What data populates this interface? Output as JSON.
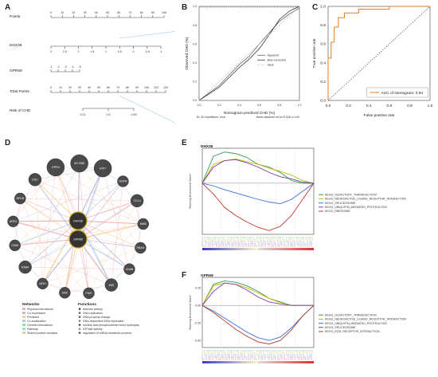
{
  "panels": {
    "A": {
      "letter": "A",
      "rows": [
        "Points",
        "DHX36",
        "GPR68",
        "Total Points",
        "Risk of CHD"
      ],
      "points_ticks": [
        "0",
        "10",
        "20",
        "30",
        "40",
        "50",
        "60",
        "70",
        "80",
        "90",
        "100"
      ],
      "dhx36_ticks": [
        "3",
        "2.5",
        "2",
        "1.5",
        "1",
        "0.5",
        "0",
        "-0.5",
        "-1"
      ],
      "gpr68_ticks": [
        "-1",
        "-2",
        "-3",
        "-4",
        "-5"
      ],
      "total_ticks": [
        "0",
        "10",
        "20",
        "30",
        "40",
        "50",
        "60",
        "70",
        "80",
        "90",
        "100",
        "110",
        "120"
      ],
      "risk_ticks": [
        "0.01",
        "0.5",
        "0.99"
      ]
    },
    "B": {
      "letter": "B",
      "ylabel": "Observed CHD (%)",
      "xlabel": "Nomogram-prediced CHD (%)",
      "legend": [
        "Apparent",
        "Bias-corrected",
        "Ideal"
      ],
      "footnote_left": "B= 40 repetitions, boot",
      "footnote_right": "Mean absolute error=0.028 n=120",
      "ticks": [
        "0.0",
        "0.2",
        "0.4",
        "0.6",
        "0.8",
        "1.0"
      ]
    },
    "C": {
      "letter": "C",
      "ylabel": "True positive rate",
      "xlabel": "False positive rate",
      "legend": "AUC of Nomogram: 0.94",
      "ticks": [
        "0.0",
        "0.2",
        "0.4",
        "0.6",
        "0.8",
        "1.0"
      ],
      "colors": {
        "roc": "#e67e22"
      }
    },
    "D": {
      "letter": "D",
      "center_nodes": [
        "DHX36",
        "GPR68"
      ],
      "outer_nodes": [
        "GPR4",
        "MYO9B",
        "IRF7",
        "OGFR",
        "CCL4",
        "NMB",
        "SNAI1",
        "XDAB",
        "MSI",
        "PIAS",
        "SMC",
        "MDH",
        "RAB4",
        "CD40",
        "APEX",
        "NFKB",
        "CDC"
      ],
      "networks_title": "Networks",
      "networks": [
        "Physical Interactions",
        "Co-expression",
        "Predicted",
        "Co-localization",
        "Genetic Interactions",
        "Pathway",
        "Shared protein domains"
      ],
      "network_colors": [
        "#e8a0a0",
        "#b7a6d6",
        "#f3c77a",
        "#9dc3e6",
        "#8fd18f",
        "#7fd8d8",
        "#d8c98c"
      ],
      "functions_title": "Functions",
      "functions": [
        "defense activity",
        "DNA replication",
        "DNA property change",
        "DNA-dependent DNA replication",
        "nuclear acid phosphodiester bond hydrolysis",
        "ATPase activity",
        "regulation of mRNA metabolic process"
      ]
    },
    "E": {
      "letter": "E",
      "gene": "DHX36",
      "ylabel": "Running Enrichment Score",
      "legend": [
        "KEGG_OLFACTORY_TRANSDUCTION",
        "KEGG_NEUROACTIVE_LIGAND_RECEPTOR_INTERACTION",
        "KEGG_SPLICEOSOME",
        "KEGG_UBIQUITIN_MEDIATED_PROTEOLYSIS",
        "KEGG_RIBOSOME"
      ],
      "colors": [
        "#2e9e4f",
        "#c9b400",
        "#3a6fd8",
        "#7a3fa3",
        "#c0392b"
      ]
    },
    "F": {
      "letter": "F",
      "gene": "GPR68",
      "ylabel": "Running Enrichment Score",
      "legend": [
        "KEGG_OLFACTORY_TRANSDUCTION",
        "KEGG_NEUROACTIVE_LIGAND_RECEPTOR_INTERACTION",
        "KEGG_UBIQUITIN_MEDIATED_PROTEOLYSIS",
        "KEGG_SPLICEOSOME",
        "KEGG_ECM_RECEPTOR_INTERACTION"
      ],
      "colors": [
        "#2e9e4f",
        "#c9b400",
        "#3a6fd8",
        "#7a3fa3",
        "#c0392b"
      ],
      "yticks": [
        "0.25",
        "0.00",
        "-0.25",
        "-0.50"
      ]
    }
  },
  "chart_data": [
    {
      "type": "line",
      "panel": "B",
      "xlabel": "Nomogram-prediced CHD (%)",
      "ylabel": "Observed CHD (%)",
      "xlim": [
        0,
        1
      ],
      "ylim": [
        0,
        1
      ],
      "series": [
        {
          "name": "Apparent",
          "x": [
            0.0,
            0.2,
            0.4,
            0.5,
            0.6,
            0.7,
            0.8,
            0.9,
            1.0
          ],
          "y": [
            0.0,
            0.16,
            0.38,
            0.47,
            0.6,
            0.72,
            0.84,
            0.92,
            0.98
          ]
        },
        {
          "name": "Bias-corrected",
          "x": [
            0.0,
            0.2,
            0.4,
            0.5,
            0.6,
            0.7,
            0.8,
            0.9,
            1.0
          ],
          "y": [
            0.0,
            0.14,
            0.35,
            0.44,
            0.55,
            0.7,
            0.86,
            0.95,
            1.0
          ]
        },
        {
          "name": "Ideal",
          "x": [
            0,
            1
          ],
          "y": [
            0,
            1
          ]
        }
      ]
    },
    {
      "type": "line",
      "panel": "C",
      "xlabel": "False positive rate",
      "ylabel": "True positive rate",
      "xlim": [
        0,
        1
      ],
      "ylim": [
        0,
        1
      ],
      "series": [
        {
          "name": "AUC of Nomogram: 0.94",
          "x": [
            0,
            0,
            0.03,
            0.03,
            0.06,
            0.06,
            0.1,
            0.1,
            0.16,
            0.16,
            0.3,
            0.3,
            0.6,
            0.6,
            1.0
          ],
          "y": [
            0,
            0.45,
            0.45,
            0.62,
            0.62,
            0.78,
            0.78,
            0.88,
            0.88,
            0.93,
            0.93,
            0.97,
            0.97,
            1.0,
            1.0
          ]
        },
        {
          "x": [
            0,
            1
          ],
          "y": [
            0,
            1
          ]
        }
      ]
    },
    {
      "type": "line",
      "panel": "E",
      "ylabel": "Running Enrichment Score",
      "x": [
        0,
        0.1,
        0.2,
        0.3,
        0.4,
        0.5,
        0.6,
        0.7,
        0.8,
        0.9,
        1.0
      ],
      "series": [
        {
          "name": "KEGG_OLFACTORY_TRANSDUCTION",
          "values": [
            0,
            0.5,
            0.58,
            0.55,
            0.48,
            0.35,
            0.3,
            0.2,
            0.05,
            0,
            0
          ]
        },
        {
          "name": "KEGG_NEUROACTIVE_LIGAND_RECEPTOR_INTERACTION",
          "values": [
            0,
            0.35,
            0.42,
            0.45,
            0.4,
            0.35,
            0.28,
            0.22,
            0.15,
            0.05,
            0
          ]
        },
        {
          "name": "KEGG_SPLICEOSOME",
          "values": [
            0,
            -0.05,
            -0.12,
            -0.18,
            -0.24,
            -0.3,
            -0.35,
            -0.38,
            -0.3,
            -0.15,
            0
          ]
        },
        {
          "name": "KEGG_UBIQUITIN_MEDIATED_PROTEOLYSIS",
          "values": [
            0,
            0.3,
            0.42,
            0.44,
            0.38,
            0.3,
            0.2,
            0.12,
            0.08,
            0.02,
            0
          ]
        },
        {
          "name": "KEGG_RIBOSOME",
          "values": [
            0,
            -0.2,
            -0.45,
            -0.6,
            -0.72,
            -0.82,
            -0.88,
            -0.8,
            -0.6,
            -0.3,
            0
          ]
        }
      ]
    },
    {
      "type": "line",
      "panel": "F",
      "ylabel": "Running Enrichment Score",
      "ylim": [
        -0.6,
        0.4
      ],
      "x": [
        0,
        0.1,
        0.2,
        0.3,
        0.4,
        0.5,
        0.6,
        0.7,
        0.8,
        0.9,
        1.0
      ],
      "series": [
        {
          "name": "KEGG_OLFACTORY_TRANSDUCTION",
          "values": [
            0,
            0.3,
            0.35,
            0.33,
            0.28,
            0.2,
            0.1,
            0.05,
            0.0,
            0,
            0
          ]
        },
        {
          "name": "KEGG_NEUROACTIVE_LIGAND_RECEPTOR_INTERACTION",
          "values": [
            0,
            0.28,
            0.32,
            0.3,
            0.25,
            0.18,
            0.1,
            0.04,
            0.0,
            0,
            0
          ]
        },
        {
          "name": "KEGG_UBIQUITIN_MEDIATED_PROTEOLYSIS",
          "values": [
            0,
            -0.08,
            -0.18,
            -0.28,
            -0.38,
            -0.46,
            -0.5,
            -0.45,
            -0.32,
            -0.15,
            0
          ]
        },
        {
          "name": "KEGG_SPLICEOSOME",
          "values": [
            0,
            0.2,
            0.32,
            0.3,
            0.22,
            0.12,
            0.05,
            0.02,
            0.0,
            0,
            0
          ]
        },
        {
          "name": "KEGG_ECM_RECEPTOR_INTERACTION",
          "values": [
            0,
            -0.1,
            -0.22,
            -0.34,
            -0.44,
            -0.52,
            -0.55,
            -0.5,
            -0.35,
            -0.15,
            0
          ]
        }
      ]
    }
  ]
}
